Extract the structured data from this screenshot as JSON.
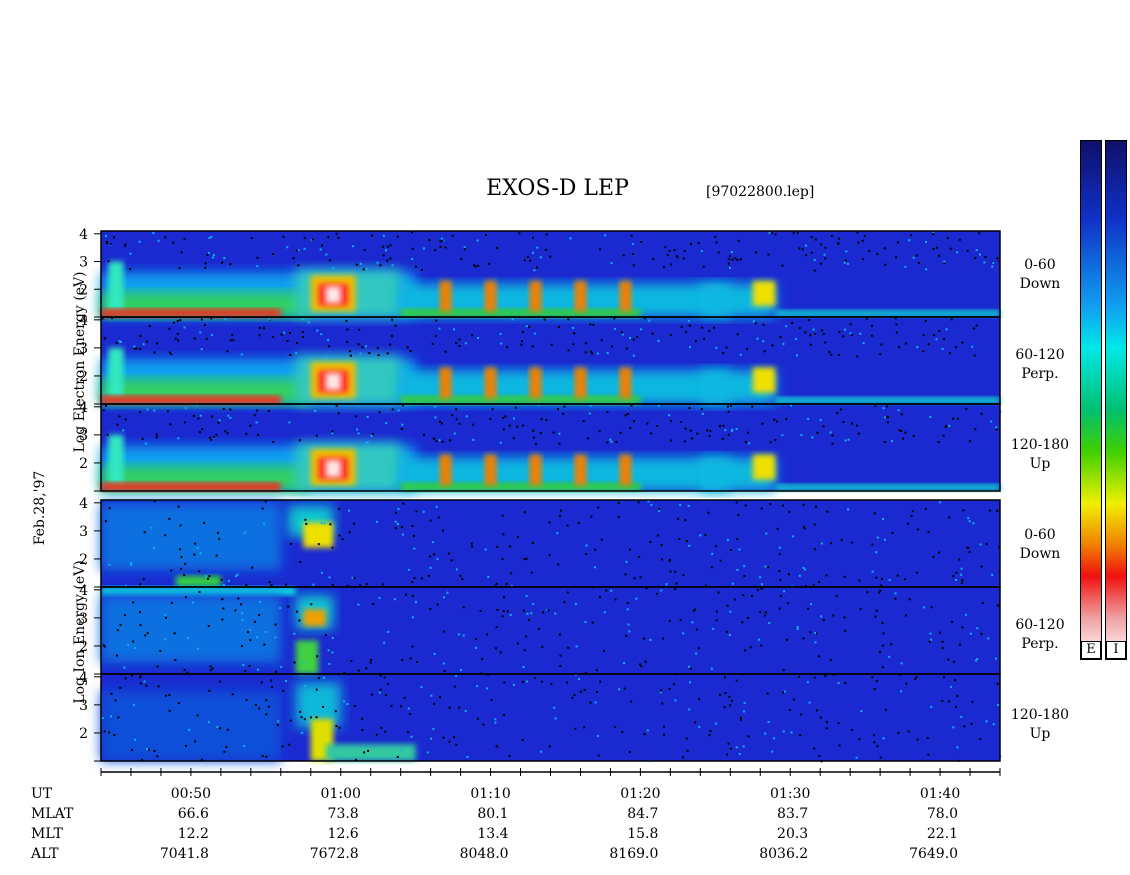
{
  "header": {
    "title": "EXOS-D LEP",
    "filename": "[97022800.lep]"
  },
  "y_labels": {
    "electron": "Log  Electron  Energy (eV)",
    "ion": "Log  Ion  Energy (eV)",
    "date": "Feb.28,'97"
  },
  "colorbar": {
    "labels": [
      "E",
      "I"
    ]
  },
  "chart_data": {
    "type": "heatmap",
    "title": "EXOS-D LEP",
    "x": {
      "label": "UT",
      "range": [
        "00:44",
        "01:44"
      ],
      "major_ticks": [
        "00:50",
        "01:00",
        "01:10",
        "01:20",
        "01:30",
        "01:40"
      ],
      "minor_tick_interval_min": 2
    },
    "y_axis": {
      "scale": "log",
      "range": [
        1,
        4.1
      ],
      "ticks": [
        "1",
        "2",
        "3",
        "4"
      ],
      "tick_labels": [
        "2",
        "3",
        "4"
      ]
    },
    "panels": [
      {
        "species": "Electron",
        "pitch_angle": "0-60",
        "direction": "Down"
      },
      {
        "species": "Electron",
        "pitch_angle": "60-120",
        "direction": "Perp."
      },
      {
        "species": "Electron",
        "pitch_angle": "120-180",
        "direction": "Up"
      },
      {
        "species": "Ion",
        "pitch_angle": "0-60",
        "direction": "Down"
      },
      {
        "species": "Ion",
        "pitch_angle": "60-120",
        "direction": "Perp."
      },
      {
        "species": "Ion",
        "pitch_angle": "120-180",
        "direction": "Up"
      }
    ],
    "orbit_rows": [
      {
        "label": "UT",
        "values": [
          "00:50",
          "01:00",
          "01:10",
          "01:20",
          "01:30",
          "01:40"
        ]
      },
      {
        "label": "MLAT",
        "values": [
          "66.6",
          "73.8",
          "80.1",
          "84.7",
          "83.7",
          "78.0"
        ]
      },
      {
        "label": "MLT",
        "values": [
          "12.2",
          "12.6",
          "13.4",
          "15.8",
          "20.3",
          "22.1"
        ]
      },
      {
        "label": "ALT",
        "values": [
          "7041.8",
          "7672.8",
          "8048.0",
          "8169.0",
          "8036.2",
          "7649.0"
        ]
      }
    ]
  }
}
